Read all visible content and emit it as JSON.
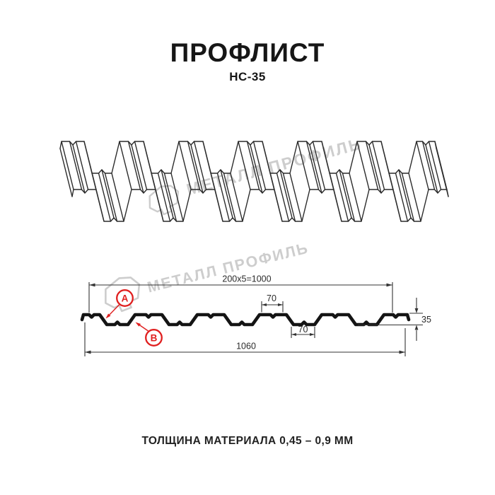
{
  "header": {
    "title": "ПРОФЛИСТ",
    "subtitle": "НС-35"
  },
  "watermark": {
    "brand": "МЕТАЛЛ ПРОФИЛЬ"
  },
  "cross_section": {
    "dim_module": "200x5=1000",
    "dim_crest_width": "70",
    "dim_valley_width": "70",
    "dim_height": "35",
    "dim_full_width": "1060",
    "point_a": "A",
    "point_b": "B"
  },
  "footer": {
    "note": "ТОЛЩИНА МАТЕРИАЛА 0,45 – 0,9 ММ"
  },
  "colors": {
    "accent_red": "#e01f1f",
    "line": "#2b2b2b",
    "watermark_gray": "#cdcdcd"
  }
}
